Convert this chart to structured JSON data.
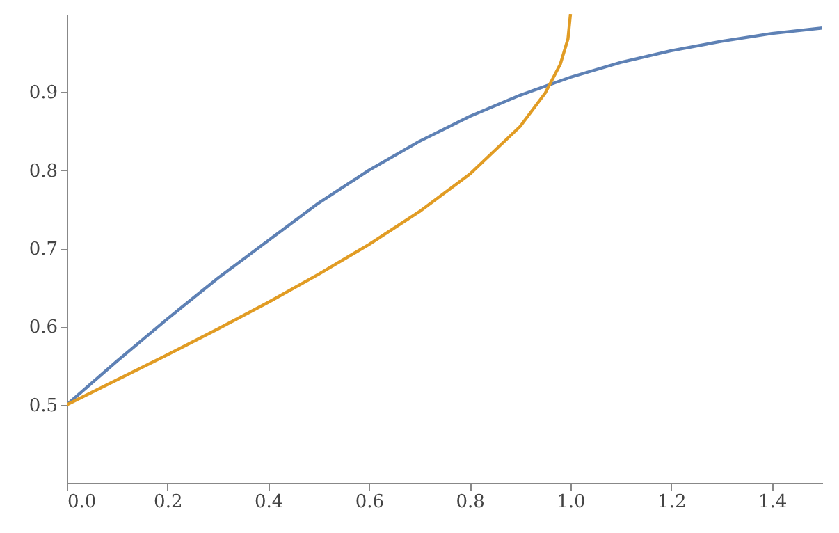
{
  "chart_data": {
    "type": "line",
    "xlim": [
      0,
      1.5
    ],
    "ylim": [
      0.4,
      1.0
    ],
    "xticks": [
      {
        "value": 0,
        "label": "0.0"
      },
      0.2,
      0.4,
      0.6,
      0.8,
      {
        "value": 1,
        "label": "1.0"
      },
      1.2,
      1.4
    ],
    "yticks": [
      0.5,
      0.6,
      0.7,
      0.8,
      0.9
    ],
    "grid": false,
    "marker": "none",
    "line_style": "solid",
    "series": [
      {
        "color": "#5e81b5",
        "x": [
          0,
          0.1,
          0.2,
          0.3,
          0.4,
          0.5,
          0.6,
          0.7,
          0.8,
          0.9,
          1.0,
          1.1,
          1.2,
          1.3,
          1.4,
          1.5
        ],
        "values": [
          0.5,
          0.556,
          0.61,
          0.662,
          0.71,
          0.758,
          0.8,
          0.837,
          0.869,
          0.896,
          0.919,
          0.938,
          0.953,
          0.965,
          0.975,
          0.982
        ]
      },
      {
        "color": "#e19c24",
        "x": [
          0,
          0.1,
          0.2,
          0.3,
          0.4,
          0.5,
          0.6,
          0.7,
          0.8,
          0.9,
          0.95,
          0.98,
          0.995,
          1.0
        ],
        "values": [
          0.5,
          0.532,
          0.564,
          0.597,
          0.631,
          0.667,
          0.705,
          0.747,
          0.795,
          0.856,
          0.899,
          0.936,
          0.968,
          1.0
        ]
      }
    ]
  }
}
